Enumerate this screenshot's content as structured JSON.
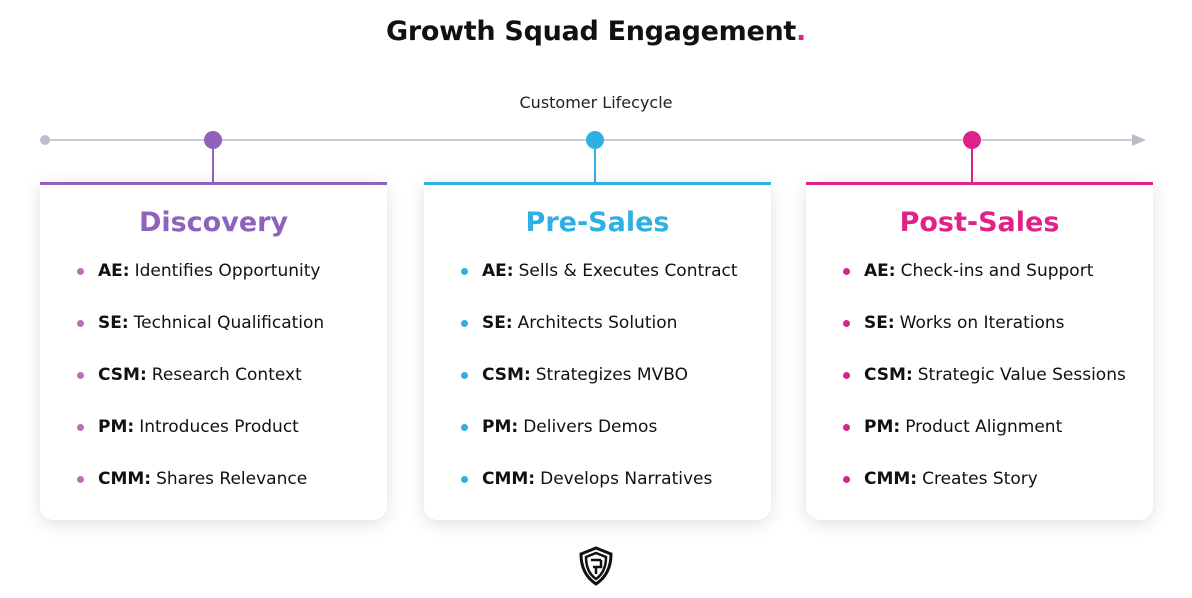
{
  "title": "Growth Squad Engagement",
  "title_dot": ".",
  "timeline_label": "Customer Lifecycle",
  "colors": {
    "discovery": "#8e62bd",
    "discovery_bullet": "#b86fb3",
    "presales": "#2eb0e2",
    "postsales": "#e0218a",
    "timeline": "#c9ccd3"
  },
  "stages": [
    {
      "name": "Discovery",
      "items": [
        {
          "role": "AE:",
          "text": "Identifies Opportunity"
        },
        {
          "role": "SE:",
          "text": "Technical Qualification"
        },
        {
          "role": "CSM:",
          "text": "Research Context"
        },
        {
          "role": "PM:",
          "text": "Introduces Product"
        },
        {
          "role": "CMM:",
          "text": "Shares Relevance"
        }
      ]
    },
    {
      "name": "Pre-Sales",
      "items": [
        {
          "role": "AE:",
          "text": "Sells & Executes Contract"
        },
        {
          "role": "SE:",
          "text": "Architects Solution"
        },
        {
          "role": "CSM:",
          "text": "Strategizes MVBO"
        },
        {
          "role": "PM:",
          "text": "Delivers Demos"
        },
        {
          "role": "CMM:",
          "text": "Develops Narratives"
        }
      ]
    },
    {
      "name": "Post-Sales",
      "items": [
        {
          "role": "AE:",
          "text": "Check-ins and Support"
        },
        {
          "role": "SE:",
          "text": "Works on Iterations"
        },
        {
          "role": "CSM:",
          "text": "Strategic Value Sessions"
        },
        {
          "role": "PM:",
          "text": "Product Alignment"
        },
        {
          "role": "CMM:",
          "text": "Creates Story"
        }
      ]
    }
  ],
  "logo": "shield-logo"
}
